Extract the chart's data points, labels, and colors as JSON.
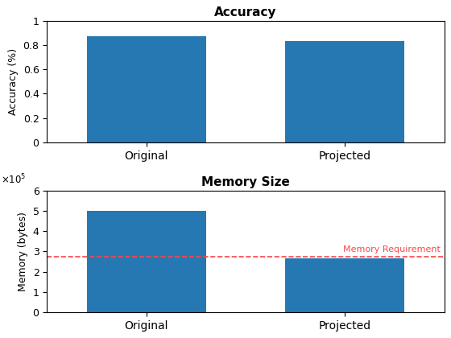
{
  "accuracy_values": [
    0.875,
    0.835
  ],
  "accuracy_categories": [
    "Original",
    "Projected"
  ],
  "accuracy_ylim": [
    0,
    1
  ],
  "accuracy_yticks": [
    0,
    0.2,
    0.4,
    0.6,
    0.8,
    1.0
  ],
  "accuracy_title": "Accuracy",
  "accuracy_ylabel": "Accuracy (%)",
  "memory_values": [
    500000,
    265000
  ],
  "memory_categories": [
    "Original",
    "Projected"
  ],
  "memory_ylim": [
    0,
    600000
  ],
  "memory_yticks": [
    0,
    100000,
    200000,
    300000,
    400000,
    500000,
    600000
  ],
  "memory_title": "Memory Size",
  "memory_ylabel": "Memory (bytes)",
  "memory_req_line": 275000,
  "memory_req_label": "Memory Requirement",
  "bar_color": "#2678B2",
  "bar_width": 0.6,
  "dashed_color": "#FF4444",
  "bg_color": "#FFFFFF"
}
